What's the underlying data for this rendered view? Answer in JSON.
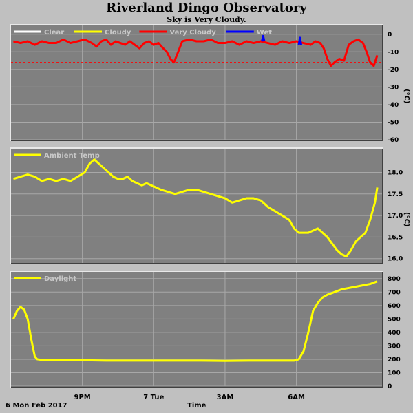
{
  "page": {
    "title": "Riverland Dingo Observatory",
    "subtitle": "Sky is Very Cloudy.",
    "date_label": "6 Mon Feb 2017",
    "x_axis_label": "Time"
  },
  "colors": {
    "panel_bg": "#808080",
    "grid": "#a8a8a8",
    "clear": "#ffffff",
    "cloudy": "#ffff00",
    "very_cloudy": "#ff0000",
    "wet": "#0000ff",
    "threshold": "#ff0000"
  },
  "chart_data": [
    {
      "type": "line",
      "id": "sky",
      "ylabel": "(°C)",
      "ylim": [
        -60,
        5
      ],
      "yticks": [
        0,
        -10,
        -20,
        -30,
        -40,
        -50,
        -60
      ],
      "xlim": [
        18.0,
        33.6
      ],
      "xticks": [
        {
          "value": 21,
          "label": "9PM"
        },
        {
          "value": 24,
          "label": "7 Tue"
        },
        {
          "value": 27,
          "label": "3AM"
        },
        {
          "value": 30,
          "label": "6AM"
        }
      ],
      "threshold": -16,
      "legend": [
        {
          "name": "Clear",
          "color": "#ffffff"
        },
        {
          "name": "Cloudy",
          "color": "#ffff00"
        },
        {
          "name": "Very Cloudy",
          "color": "#ff0000"
        },
        {
          "name": "Wet",
          "color": "#0000ff"
        }
      ],
      "series": [
        {
          "name": "Very Cloudy",
          "color": "#ff0000",
          "x": [
            18.1,
            18.4,
            18.7,
            19.0,
            19.3,
            19.6,
            19.9,
            20.2,
            20.5,
            20.8,
            21.1,
            21.4,
            21.6,
            21.8,
            22.0,
            22.2,
            22.4,
            22.6,
            22.8,
            23.0,
            23.2,
            23.4,
            23.6,
            23.8,
            24.0,
            24.2,
            24.4,
            24.55,
            24.7,
            24.85,
            25.0,
            25.2,
            25.5,
            25.8,
            26.1,
            26.4,
            26.7,
            27.0,
            27.3,
            27.6,
            27.9,
            28.2,
            28.5,
            28.8,
            29.1,
            29.4,
            29.7,
            30.0,
            30.3,
            30.6,
            30.8,
            31.0,
            31.15,
            31.3,
            31.45,
            31.6,
            31.8,
            32.0,
            32.2,
            32.4,
            32.6,
            32.8,
            32.95,
            33.1,
            33.25,
            33.4
          ],
          "y": [
            -4,
            -5,
            -4,
            -6,
            -4,
            -5,
            -5,
            -3,
            -5,
            -4,
            -3,
            -5,
            -7,
            -4,
            -3,
            -6,
            -4,
            -5,
            -6,
            -4,
            -6,
            -8,
            -5,
            -4,
            -6,
            -5,
            -8,
            -10,
            -14,
            -16,
            -11,
            -4,
            -3,
            -4,
            -4,
            -3,
            -5,
            -5,
            -4,
            -6,
            -4,
            -5,
            -4,
            -5,
            -6,
            -4,
            -5,
            -4,
            -5,
            -6,
            -4,
            -5,
            -8,
            -14,
            -18,
            -16,
            -14,
            -15,
            -6,
            -4,
            -3,
            -5,
            -10,
            -16,
            -18,
            -12
          ]
        },
        {
          "name": "Wet",
          "color": "#0000ff",
          "x": [
            28.55,
            28.6,
            28.65,
            30.1,
            30.15,
            30.2
          ],
          "y": [
            -4,
            -1,
            -4,
            -6,
            -2,
            -6
          ]
        }
      ]
    },
    {
      "type": "line",
      "id": "ambient",
      "ylabel": "(°C)",
      "ylim": [
        15.9,
        18.55
      ],
      "yticks": [
        18.0,
        17.5,
        17.0,
        16.5,
        16.0
      ],
      "xlim": [
        18.0,
        33.6
      ],
      "xticks": [
        {
          "value": 21,
          "label": "9PM"
        },
        {
          "value": 24,
          "label": "7 Tue"
        },
        {
          "value": 27,
          "label": "3AM"
        },
        {
          "value": 30,
          "label": "6AM"
        }
      ],
      "legend": [
        {
          "name": "Ambient Temp",
          "color": "#ffff00"
        }
      ],
      "series": [
        {
          "name": "Ambient Temp",
          "color": "#ffff00",
          "x": [
            18.1,
            18.4,
            18.7,
            19.0,
            19.3,
            19.6,
            19.9,
            20.2,
            20.5,
            20.8,
            21.1,
            21.3,
            21.5,
            21.7,
            21.9,
            22.1,
            22.3,
            22.5,
            22.7,
            22.9,
            23.1,
            23.3,
            23.5,
            23.7,
            23.9,
            24.1,
            24.3,
            24.6,
            24.9,
            25.2,
            25.5,
            25.8,
            26.1,
            26.4,
            26.7,
            27.0,
            27.3,
            27.6,
            27.9,
            28.2,
            28.5,
            28.8,
            29.1,
            29.4,
            29.7,
            29.9,
            30.1,
            30.3,
            30.5,
            30.7,
            30.9,
            31.1,
            31.3,
            31.5,
            31.7,
            31.9,
            32.1,
            32.3,
            32.5,
            32.7,
            32.9,
            33.1,
            33.3,
            33.4
          ],
          "y": [
            17.85,
            17.9,
            17.95,
            17.9,
            17.8,
            17.85,
            17.8,
            17.85,
            17.8,
            17.9,
            18.0,
            18.2,
            18.3,
            18.2,
            18.1,
            18.0,
            17.9,
            17.85,
            17.85,
            17.9,
            17.8,
            17.75,
            17.7,
            17.75,
            17.7,
            17.65,
            17.6,
            17.55,
            17.5,
            17.55,
            17.6,
            17.6,
            17.55,
            17.5,
            17.45,
            17.4,
            17.3,
            17.35,
            17.4,
            17.4,
            17.35,
            17.2,
            17.1,
            17.0,
            16.9,
            16.7,
            16.6,
            16.6,
            16.6,
            16.65,
            16.7,
            16.6,
            16.5,
            16.35,
            16.2,
            16.1,
            16.05,
            16.2,
            16.4,
            16.5,
            16.6,
            16.9,
            17.3,
            17.65
          ]
        }
      ]
    },
    {
      "type": "line",
      "id": "daylight",
      "ylabel": "",
      "ylim": [
        0,
        850
      ],
      "yticks": [
        800,
        700,
        600,
        500,
        400,
        300,
        200,
        100,
        0
      ],
      "xlim": [
        18.0,
        33.6
      ],
      "xticks": [
        {
          "value": 21,
          "label": "9PM"
        },
        {
          "value": 24,
          "label": "7 Tue"
        },
        {
          "value": 27,
          "label": "3AM"
        },
        {
          "value": 30,
          "label": "6AM"
        }
      ],
      "legend": [
        {
          "name": "Daylight",
          "color": "#ffff00"
        }
      ],
      "series": [
        {
          "name": "Daylight",
          "color": "#ffff00",
          "x": [
            18.1,
            18.25,
            18.4,
            18.55,
            18.7,
            18.85,
            19.0,
            19.1,
            19.3,
            19.6,
            20.0,
            21.0,
            22.0,
            23.0,
            24.0,
            25.0,
            26.0,
            27.0,
            28.0,
            29.0,
            29.5,
            29.9,
            30.1,
            30.3,
            30.5,
            30.7,
            30.9,
            31.1,
            31.3,
            31.6,
            31.9,
            32.2,
            32.5,
            32.8,
            33.1,
            33.4
          ],
          "y": [
            500,
            560,
            590,
            570,
            500,
            350,
            220,
            200,
            195,
            195,
            195,
            193,
            190,
            190,
            190,
            190,
            190,
            188,
            190,
            190,
            190,
            190,
            200,
            260,
            400,
            560,
            620,
            660,
            680,
            700,
            720,
            730,
            740,
            750,
            760,
            780
          ]
        }
      ]
    }
  ]
}
